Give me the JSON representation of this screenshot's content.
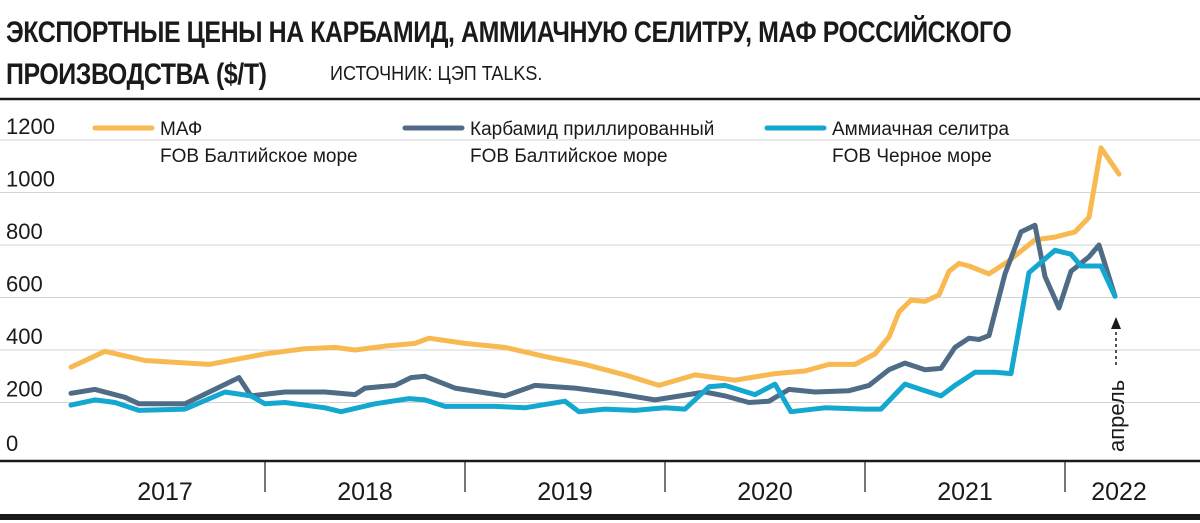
{
  "header": {
    "title_line1": "ЭКСПОРТНЫЕ ЦЕНЫ НА КАРБАМИД, АММИАЧНУЮ СЕЛИТРУ, МАФ РОССИЙСКОГО",
    "title_line2": "ПРОИЗВОДСТВА ($/Т)",
    "source": "ИСТОЧНИК: ЦЭП TALKS."
  },
  "chart_data": {
    "type": "line",
    "title": "ЭКСПОРТНЫЕ ЦЕНЫ НА КАРБАМИД, АММИАЧНУЮ СЕЛИТРУ, МАФ РОССИЙСКОГО ПРОИЗВОДСТВА ($/Т)",
    "xlabel": "",
    "ylabel": "",
    "ylim": [
      0,
      1200
    ],
    "yticks": [
      "1200",
      "1000",
      "800",
      "600",
      "400",
      "200",
      "0"
    ],
    "ytick_values": [
      1200,
      1000,
      800,
      600,
      400,
      200,
      0
    ],
    "xlim": [
      2017.0,
      2022.55
    ],
    "year_labels": [
      {
        "label": "2017",
        "center": 2017.5
      },
      {
        "label": "2018",
        "center": 2018.5
      },
      {
        "label": "2019",
        "center": 2019.5
      },
      {
        "label": "2020",
        "center": 2020.5
      },
      {
        "label": "2021",
        "center": 2021.5
      },
      {
        "label": "2022",
        "center": 2022.27
      }
    ],
    "year_separators": [
      2018.0,
      2019.0,
      2020.0,
      2021.0,
      2022.0
    ],
    "annotation": "апрель",
    "annotation_x": 2022.25,
    "series": [
      {
        "name": "МАФ",
        "sublabel": "FOB Балтийское море",
        "color": "#f7b950",
        "points": [
          [
            2017.03,
            335
          ],
          [
            2017.2,
            395
          ],
          [
            2017.4,
            360
          ],
          [
            2017.72,
            345
          ],
          [
            2018.0,
            385
          ],
          [
            2018.2,
            405
          ],
          [
            2018.35,
            410
          ],
          [
            2018.45,
            400
          ],
          [
            2018.6,
            415
          ],
          [
            2018.75,
            425
          ],
          [
            2018.82,
            445
          ],
          [
            2019.0,
            425
          ],
          [
            2019.2,
            410
          ],
          [
            2019.4,
            375
          ],
          [
            2019.6,
            345
          ],
          [
            2019.8,
            305
          ],
          [
            2019.97,
            265
          ],
          [
            2020.15,
            305
          ],
          [
            2020.35,
            285
          ],
          [
            2020.55,
            310
          ],
          [
            2020.7,
            320
          ],
          [
            2020.82,
            345
          ],
          [
            2020.95,
            345
          ],
          [
            2021.05,
            385
          ],
          [
            2021.12,
            450
          ],
          [
            2021.17,
            545
          ],
          [
            2021.23,
            590
          ],
          [
            2021.3,
            585
          ],
          [
            2021.37,
            610
          ],
          [
            2021.42,
            700
          ],
          [
            2021.47,
            730
          ],
          [
            2021.52,
            720
          ],
          [
            2021.62,
            690
          ],
          [
            2021.72,
            740
          ],
          [
            2021.85,
            820
          ],
          [
            2021.95,
            830
          ],
          [
            2022.05,
            850
          ],
          [
            2022.12,
            905
          ],
          [
            2022.18,
            1170
          ],
          [
            2022.27,
            1070
          ]
        ]
      },
      {
        "name": "Карбамид приллированный",
        "sublabel": "FOB Балтийское море",
        "color": "#4f6b85",
        "points": [
          [
            2017.03,
            235
          ],
          [
            2017.15,
            250
          ],
          [
            2017.3,
            220
          ],
          [
            2017.37,
            195
          ],
          [
            2017.6,
            195
          ],
          [
            2017.87,
            295
          ],
          [
            2017.93,
            225
          ],
          [
            2018.1,
            240
          ],
          [
            2018.3,
            240
          ],
          [
            2018.45,
            230
          ],
          [
            2018.5,
            255
          ],
          [
            2018.65,
            265
          ],
          [
            2018.73,
            295
          ],
          [
            2018.8,
            300
          ],
          [
            2018.95,
            255
          ],
          [
            2019.2,
            225
          ],
          [
            2019.35,
            265
          ],
          [
            2019.55,
            255
          ],
          [
            2019.75,
            235
          ],
          [
            2019.95,
            210
          ],
          [
            2020.2,
            240
          ],
          [
            2020.3,
            225
          ],
          [
            2020.42,
            200
          ],
          [
            2020.52,
            205
          ],
          [
            2020.62,
            250
          ],
          [
            2020.75,
            240
          ],
          [
            2020.92,
            245
          ],
          [
            2021.02,
            265
          ],
          [
            2021.12,
            325
          ],
          [
            2021.2,
            350
          ],
          [
            2021.3,
            325
          ],
          [
            2021.38,
            330
          ],
          [
            2021.45,
            410
          ],
          [
            2021.52,
            445
          ],
          [
            2021.57,
            440
          ],
          [
            2021.62,
            455
          ],
          [
            2021.7,
            690
          ],
          [
            2021.78,
            850
          ],
          [
            2021.85,
            875
          ],
          [
            2021.9,
            680
          ],
          [
            2021.97,
            560
          ],
          [
            2022.03,
            700
          ],
          [
            2022.12,
            755
          ],
          [
            2022.17,
            800
          ],
          [
            2022.25,
            605
          ]
        ]
      },
      {
        "name": "Аммиачная селитра",
        "sublabel": "FOB Черное море",
        "color": "#14a7d0",
        "points": [
          [
            2017.03,
            190
          ],
          [
            2017.15,
            210
          ],
          [
            2017.25,
            200
          ],
          [
            2017.37,
            170
          ],
          [
            2017.6,
            175
          ],
          [
            2017.8,
            240
          ],
          [
            2017.93,
            225
          ],
          [
            2018.0,
            195
          ],
          [
            2018.1,
            200
          ],
          [
            2018.3,
            180
          ],
          [
            2018.38,
            165
          ],
          [
            2018.55,
            195
          ],
          [
            2018.72,
            215
          ],
          [
            2018.8,
            210
          ],
          [
            2018.9,
            185
          ],
          [
            2019.15,
            185
          ],
          [
            2019.3,
            180
          ],
          [
            2019.5,
            205
          ],
          [
            2019.57,
            165
          ],
          [
            2019.7,
            175
          ],
          [
            2019.85,
            170
          ],
          [
            2020.0,
            180
          ],
          [
            2020.1,
            175
          ],
          [
            2020.22,
            260
          ],
          [
            2020.3,
            265
          ],
          [
            2020.45,
            230
          ],
          [
            2020.55,
            270
          ],
          [
            2020.63,
            165
          ],
          [
            2020.8,
            180
          ],
          [
            2021.0,
            175
          ],
          [
            2021.08,
            175
          ],
          [
            2021.2,
            270
          ],
          [
            2021.3,
            245
          ],
          [
            2021.38,
            225
          ],
          [
            2021.45,
            265
          ],
          [
            2021.55,
            315
          ],
          [
            2021.65,
            315
          ],
          [
            2021.73,
            310
          ],
          [
            2021.82,
            695
          ],
          [
            2021.95,
            780
          ],
          [
            2022.03,
            765
          ],
          [
            2022.08,
            720
          ],
          [
            2022.18,
            720
          ],
          [
            2022.25,
            605
          ]
        ]
      }
    ]
  }
}
